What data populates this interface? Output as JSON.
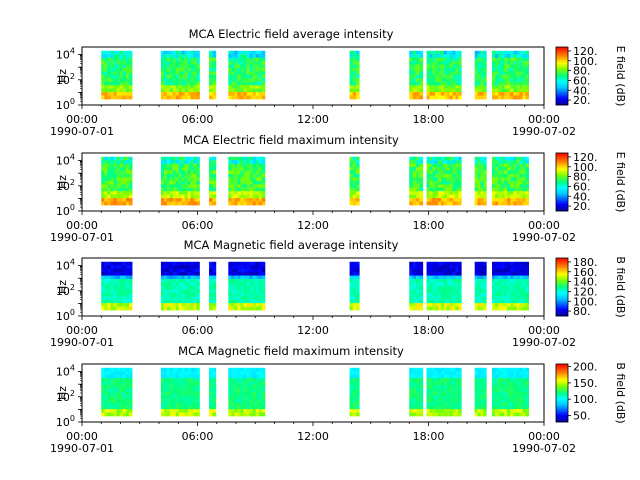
{
  "colors": {
    "background": "#ffffff",
    "colormap": [
      "#00008f",
      "#0000ff",
      "#00ffff",
      "#00ff80",
      "#ffff00",
      "#ff8000",
      "#ff0000"
    ]
  },
  "chart_data": [
    {
      "type": "heatmap",
      "title": "MCA  Electric field average intensity",
      "ylabel": "Hz",
      "ytick_labels": [
        {
          "base": "10",
          "exp": "0",
          "value": 1
        },
        {
          "base": "10",
          "exp": "2",
          "value": 100
        },
        {
          "base": "10",
          "exp": "4",
          "value": 10000
        }
      ],
      "yscale": "log",
      "ylim": [
        1,
        40000
      ],
      "xlim": [
        "1990-07-01 00:00",
        "1990-07-02 00:00"
      ],
      "xtick_labels": [
        "00:00",
        "06:00",
        "12:00",
        "18:00",
        "00:00"
      ],
      "xtick_sublabels": [
        "1990-07-01",
        "",
        "",
        "",
        "1990-07-02"
      ],
      "colorbar": {
        "label": "E field (dB)",
        "range": [
          10,
          128
        ],
        "tick_labels": [
          "20.",
          "40.",
          "60.",
          "80.",
          "100.",
          "120."
        ],
        "tick_values": [
          20,
          40,
          60,
          80,
          100,
          120
        ]
      },
      "data_intervals_hours": [
        [
          1.0,
          2.6
        ],
        [
          4.1,
          6.1
        ],
        [
          6.6,
          6.95
        ],
        [
          7.6,
          9.5
        ],
        [
          13.9,
          14.4
        ],
        [
          17.0,
          17.7
        ],
        [
          17.9,
          19.7
        ],
        [
          20.4,
          21.0
        ],
        [
          21.3,
          23.2
        ]
      ]
    },
    {
      "type": "heatmap",
      "title": "MCA  Electric field maximum intensity",
      "ylabel": "Hz",
      "ytick_labels": [
        {
          "base": "10",
          "exp": "0",
          "value": 1
        },
        {
          "base": "10",
          "exp": "2",
          "value": 100
        },
        {
          "base": "10",
          "exp": "4",
          "value": 10000
        }
      ],
      "yscale": "log",
      "ylim": [
        1,
        40000
      ],
      "xlim": [
        "1990-07-01 00:00",
        "1990-07-02 00:00"
      ],
      "xtick_labels": [
        "00:00",
        "06:00",
        "12:00",
        "18:00",
        "00:00"
      ],
      "xtick_sublabels": [
        "1990-07-01",
        "",
        "",
        "",
        "1990-07-02"
      ],
      "colorbar": {
        "label": "E field (dB)",
        "range": [
          10,
          128
        ],
        "tick_labels": [
          "20.",
          "40.",
          "60.",
          "80.",
          "100.",
          "120."
        ],
        "tick_values": [
          20,
          40,
          60,
          80,
          100,
          120
        ]
      },
      "data_intervals_hours": [
        [
          1.0,
          2.6
        ],
        [
          4.1,
          6.1
        ],
        [
          6.6,
          6.95
        ],
        [
          7.6,
          9.5
        ],
        [
          13.9,
          14.4
        ],
        [
          17.0,
          17.7
        ],
        [
          17.9,
          19.7
        ],
        [
          20.4,
          21.0
        ],
        [
          21.3,
          23.2
        ]
      ]
    },
    {
      "type": "heatmap",
      "title": "MCA  Magnetic field average intensity",
      "ylabel": "Hz",
      "ytick_labels": [
        {
          "base": "10",
          "exp": "0",
          "value": 1
        },
        {
          "base": "10",
          "exp": "2",
          "value": 100
        },
        {
          "base": "10",
          "exp": "4",
          "value": 10000
        }
      ],
      "yscale": "log",
      "ylim": [
        1,
        40000
      ],
      "xlim": [
        "1990-07-01 00:00",
        "1990-07-02 00:00"
      ],
      "xtick_labels": [
        "00:00",
        "06:00",
        "12:00",
        "18:00",
        "00:00"
      ],
      "xtick_sublabels": [
        "1990-07-01",
        "",
        "",
        "",
        "1990-07-02"
      ],
      "colorbar": {
        "label": "B field (dB)",
        "range": [
          70,
          188
        ],
        "tick_labels": [
          "80.",
          "100.",
          "120.",
          "140.",
          "160.",
          "180."
        ],
        "tick_values": [
          80,
          100,
          120,
          140,
          160,
          180
        ]
      },
      "data_intervals_hours": [
        [
          1.0,
          2.6
        ],
        [
          4.1,
          6.1
        ],
        [
          6.6,
          6.95
        ],
        [
          7.6,
          9.5
        ],
        [
          13.9,
          14.4
        ],
        [
          17.0,
          17.7
        ],
        [
          17.9,
          19.7
        ],
        [
          20.4,
          21.0
        ],
        [
          21.3,
          23.2
        ]
      ]
    },
    {
      "type": "heatmap",
      "title": "MCA  Magnetic field maximum intensity",
      "ylabel": "Hz",
      "ytick_labels": [
        {
          "base": "10",
          "exp": "0",
          "value": 1
        },
        {
          "base": "10",
          "exp": "2",
          "value": 100
        },
        {
          "base": "10",
          "exp": "4",
          "value": 10000
        }
      ],
      "yscale": "log",
      "ylim": [
        1,
        40000
      ],
      "xlim": [
        "1990-07-01 00:00",
        "1990-07-02 00:00"
      ],
      "xtick_labels": [
        "00:00",
        "06:00",
        "12:00",
        "18:00",
        "00:00"
      ],
      "xtick_sublabels": [
        "1990-07-01",
        "",
        "",
        "",
        "1990-07-02"
      ],
      "colorbar": {
        "label": "B field (dB)",
        "range": [
          30,
          208
        ],
        "tick_labels": [
          "50.",
          "100.",
          "150.",
          "200."
        ],
        "tick_values": [
          50,
          100,
          150,
          200
        ]
      },
      "data_intervals_hours": [
        [
          1.0,
          2.6
        ],
        [
          4.1,
          6.1
        ],
        [
          6.6,
          6.95
        ],
        [
          7.6,
          9.5
        ],
        [
          13.9,
          14.4
        ],
        [
          17.0,
          17.7
        ],
        [
          17.9,
          19.7
        ],
        [
          20.4,
          21.0
        ],
        [
          21.3,
          23.2
        ]
      ]
    }
  ]
}
